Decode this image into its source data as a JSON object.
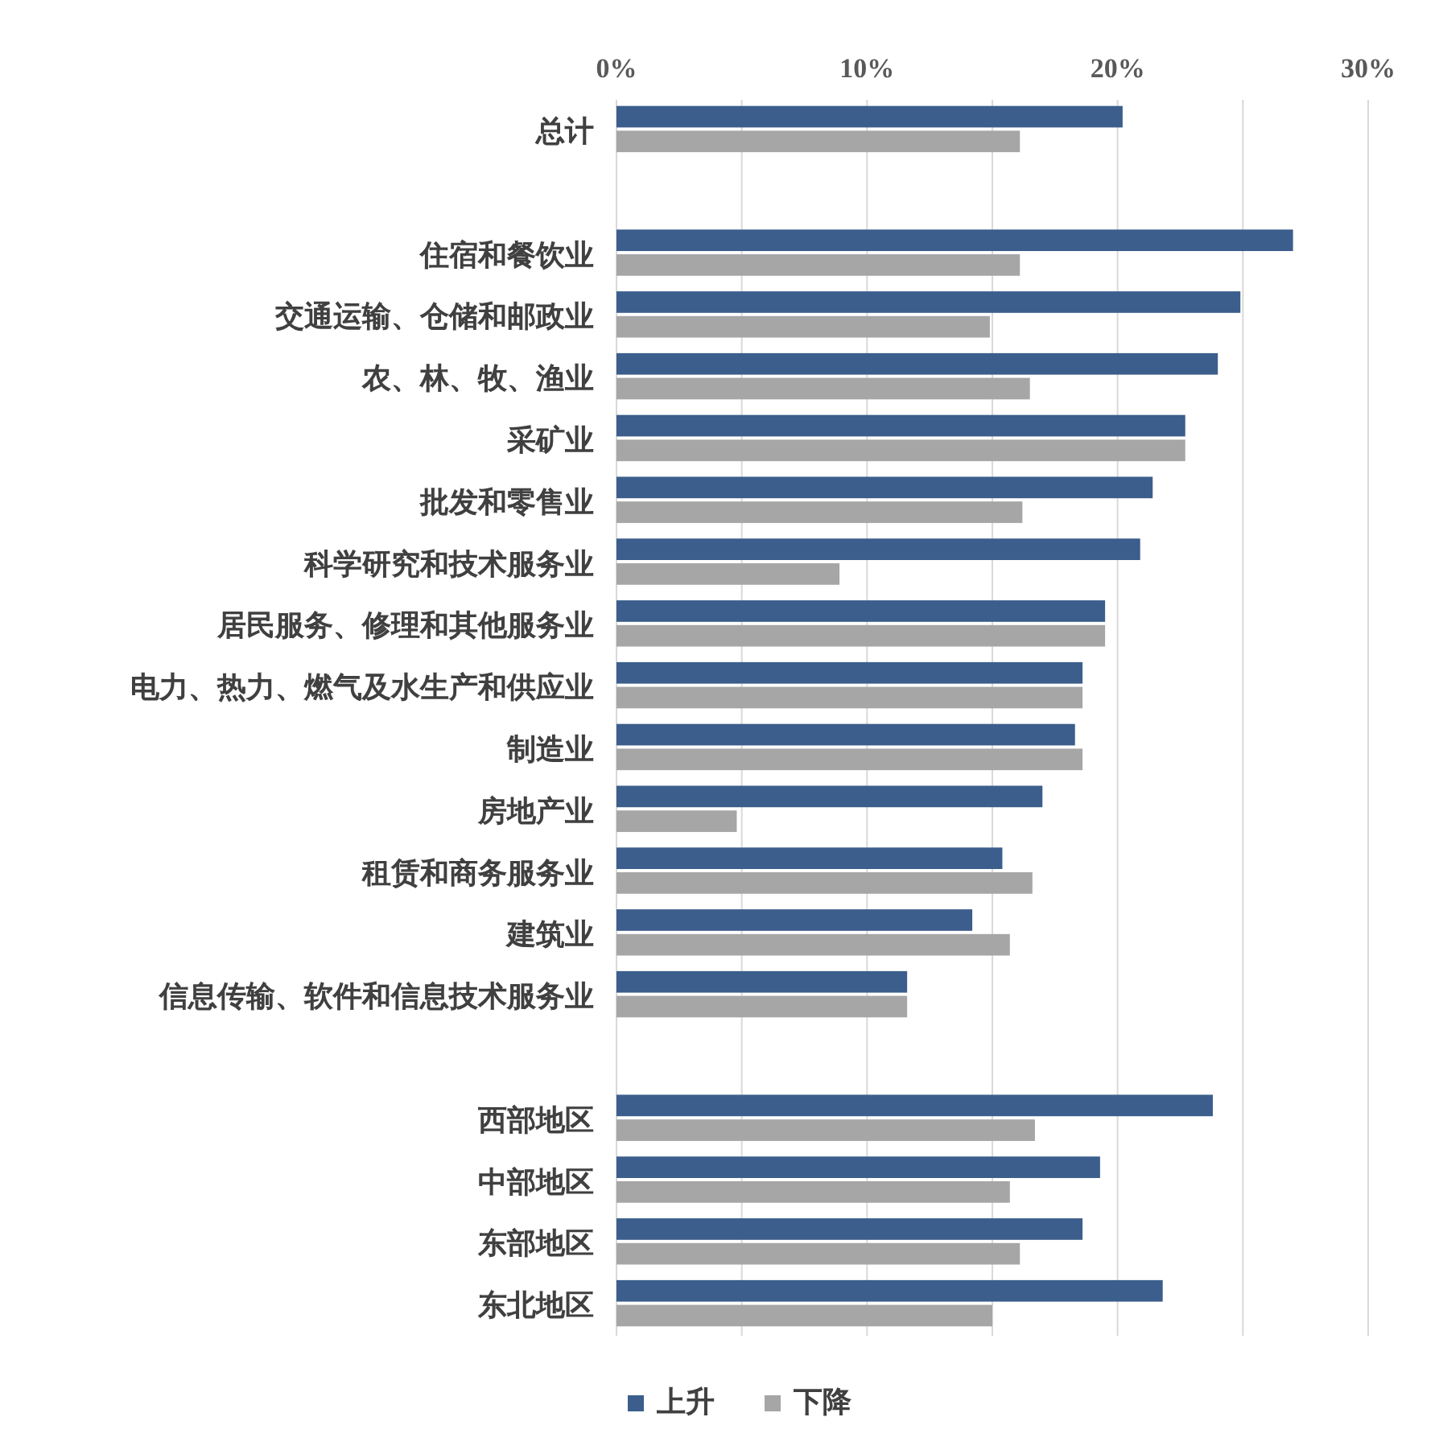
{
  "chart_data": {
    "type": "bar",
    "orientation": "horizontal",
    "categories": [
      "总计",
      null,
      "住宿和餐饮业",
      "交通运输、仓储和邮政业",
      "农、林、牧、渔业",
      "采矿业",
      "批发和零售业",
      "科学研究和技术服务业",
      "居民服务、修理和其他服务业",
      "电力、热力、燃气及水生产和供应业",
      "制造业",
      "房地产业",
      "租赁和商务服务业",
      "建筑业",
      "信息传输、软件和信息技术服务业",
      null,
      "西部地区",
      "中部地区",
      "东部地区",
      "东北地区"
    ],
    "series": [
      {
        "name": "上升",
        "color": "#3b5e8c",
        "values": [
          20.2,
          null,
          27.0,
          24.9,
          24.0,
          22.7,
          21.4,
          20.9,
          19.5,
          18.6,
          18.3,
          17.0,
          15.4,
          14.2,
          11.6,
          null,
          23.8,
          19.3,
          18.6,
          21.8
        ]
      },
      {
        "name": "下降",
        "color": "#a6a6a6",
        "values": [
          16.1,
          null,
          16.1,
          14.9,
          16.5,
          22.7,
          16.2,
          8.9,
          19.5,
          18.6,
          18.6,
          4.8,
          16.6,
          15.7,
          11.6,
          null,
          16.7,
          15.7,
          16.1,
          15.0
        ]
      }
    ],
    "xlim": [
      0,
      30
    ],
    "xticks": [
      {
        "value": 0,
        "label": "0%"
      },
      {
        "value": 5,
        "label": null
      },
      {
        "value": 10,
        "label": "10%"
      },
      {
        "value": 15,
        "label": null
      },
      {
        "value": 20,
        "label": "20%"
      },
      {
        "value": 25,
        "label": null
      },
      {
        "value": 30,
        "label": "30%"
      }
    ],
    "grid": "x",
    "legend": "bottom"
  }
}
